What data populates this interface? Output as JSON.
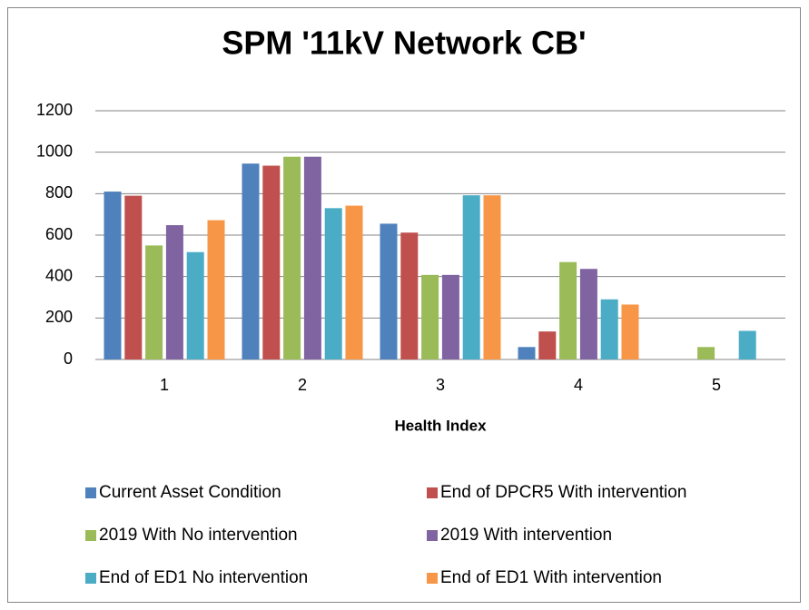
{
  "chart_data": {
    "type": "bar",
    "title": "SPM '11kV Network CB'",
    "x_label": "Health Index",
    "categories": [
      "1",
      "2",
      "3",
      "4",
      "5"
    ],
    "series": [
      {
        "name": "Current Asset Condition",
        "color": "#4f81bd",
        "values": [
          810,
          945,
          655,
          60,
          0
        ]
      },
      {
        "name": "End of DPCR5 With intervention",
        "color": "#c0504d",
        "values": [
          790,
          935,
          612,
          135,
          0
        ]
      },
      {
        "name": "2019 With No intervention",
        "color": "#9bbb59",
        "values": [
          550,
          978,
          408,
          470,
          60
        ]
      },
      {
        "name": "2019 With intervention",
        "color": "#8064a2",
        "values": [
          648,
          978,
          408,
          437,
          0
        ]
      },
      {
        "name": "End of ED1 No intervention",
        "color": "#4bacc6",
        "values": [
          518,
          730,
          792,
          290,
          138
        ]
      },
      {
        "name": "End of ED1 With intervention",
        "color": "#f79646",
        "values": [
          672,
          742,
          792,
          265,
          0
        ]
      }
    ],
    "ylim": [
      0,
      1200
    ],
    "yticks": [
      0,
      200,
      400,
      600,
      800,
      1000,
      1200
    ],
    "grid": true,
    "legend": "bottom"
  }
}
